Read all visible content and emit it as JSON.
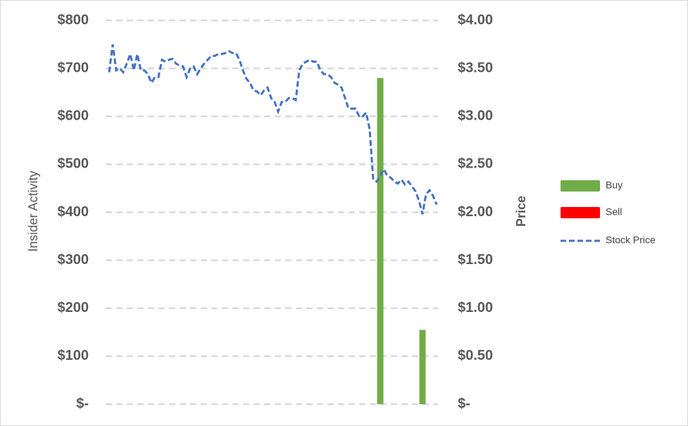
{
  "chart_data": {
    "type": "bar_line",
    "y_axis_label": "Insider Activity",
    "y2_axis_label": "Price",
    "ylim": [
      0,
      800
    ],
    "yticks": [
      {
        "value": 0,
        "label": "$-"
      },
      {
        "value": 100,
        "label": "$100"
      },
      {
        "value": 200,
        "label": "$200"
      },
      {
        "value": 300,
        "label": "$300"
      },
      {
        "value": 400,
        "label": "$400"
      },
      {
        "value": 500,
        "label": "$500"
      },
      {
        "value": 600,
        "label": "$600"
      },
      {
        "value": 700,
        "label": "$700"
      },
      {
        "value": 800,
        "label": "$800"
      }
    ],
    "y2lim": [
      0,
      4
    ],
    "y2ticks": [
      {
        "value": 0,
        "label": "$-"
      },
      {
        "value": 0.5,
        "label": "$0.50"
      },
      {
        "value": 1,
        "label": "$1.00"
      },
      {
        "value": 1.5,
        "label": "$1.50"
      },
      {
        "value": 2,
        "label": "$2.00"
      },
      {
        "value": 2.5,
        "label": "$2.50"
      },
      {
        "value": 3,
        "label": "$3.00"
      },
      {
        "value": 3.5,
        "label": "$3.50"
      },
      {
        "value": 4,
        "label": "$4.00"
      }
    ],
    "grid": true,
    "legend": "right",
    "series": [
      {
        "name": "Buy",
        "color": "#70ad47",
        "kind": "bar",
        "values": [
          null,
          null,
          null,
          null,
          null,
          null,
          null,
          null,
          null,
          null,
          null,
          null,
          null,
          null,
          null,
          null,
          null,
          null,
          null,
          null,
          null,
          null,
          null,
          null,
          null,
          null,
          null,
          null,
          null,
          null,
          null,
          null,
          null,
          null,
          null,
          null,
          null,
          null,
          null,
          null,
          null,
          null,
          null,
          null,
          null,
          null,
          null,
          null,
          null,
          null,
          null,
          null,
          null,
          null,
          null,
          null,
          null,
          null,
          null,
          null,
          null,
          null,
          null,
          null,
          null,
          null,
          null,
          null,
          null,
          null,
          null,
          null,
          null,
          null,
          null,
          null,
          null,
          680,
          null,
          null,
          null,
          null,
          null,
          null,
          null,
          null,
          null,
          null,
          null,
          155,
          null,
          null,
          null,
          null
        ]
      },
      {
        "name": "Sell",
        "color": "#ff0000",
        "kind": "bar",
        "values": [
          null,
          null,
          null,
          null,
          null,
          null,
          null,
          null,
          null,
          null,
          null,
          null,
          null,
          null,
          null,
          null,
          null,
          null,
          null,
          null,
          null,
          null,
          null,
          null,
          null,
          null,
          null,
          null,
          null,
          null,
          null,
          null,
          null,
          null,
          null,
          null,
          null,
          null,
          null,
          null,
          null,
          null,
          null,
          null,
          null,
          null,
          null,
          null,
          null,
          null,
          null,
          null,
          null,
          null,
          null,
          null,
          null,
          null,
          null,
          null,
          null,
          null,
          null,
          null,
          null,
          null,
          null,
          null,
          null,
          null,
          null,
          null,
          null,
          null,
          null,
          null,
          null,
          null,
          null,
          null,
          null,
          null,
          null,
          null,
          null,
          null,
          null,
          null,
          null,
          null,
          null,
          null,
          null,
          null
        ]
      },
      {
        "name": "Stock Price",
        "color": "#4472c4",
        "kind": "line",
        "axis": "y2",
        "values": [
          3.46,
          3.75,
          3.48,
          3.5,
          3.46,
          3.55,
          3.65,
          3.48,
          3.65,
          3.48,
          3.48,
          3.44,
          3.35,
          3.41,
          3.41,
          3.59,
          3.57,
          3.59,
          3.6,
          3.55,
          3.53,
          3.52,
          3.41,
          3.5,
          3.52,
          3.44,
          3.5,
          3.55,
          3.59,
          3.63,
          3.63,
          3.65,
          3.65,
          3.66,
          3.68,
          3.66,
          3.66,
          3.59,
          3.48,
          3.39,
          3.35,
          3.27,
          3.26,
          3.22,
          3.27,
          3.3,
          3.19,
          3.15,
          3.05,
          3.15,
          3.15,
          3.19,
          3.19,
          3.17,
          3.48,
          3.55,
          3.57,
          3.59,
          3.57,
          3.57,
          3.48,
          3.44,
          3.44,
          3.41,
          3.35,
          3.33,
          3.3,
          3.19,
          3.08,
          3.08,
          3.08,
          3.0,
          3.0,
          3.04,
          2.86,
          2.34,
          2.32,
          2.38,
          2.45,
          2.38,
          2.36,
          2.32,
          2.3,
          2.34,
          2.29,
          2.32,
          2.27,
          2.22,
          2.12,
          1.98,
          2.19,
          2.23,
          2.17,
          2.08
        ]
      }
    ]
  }
}
